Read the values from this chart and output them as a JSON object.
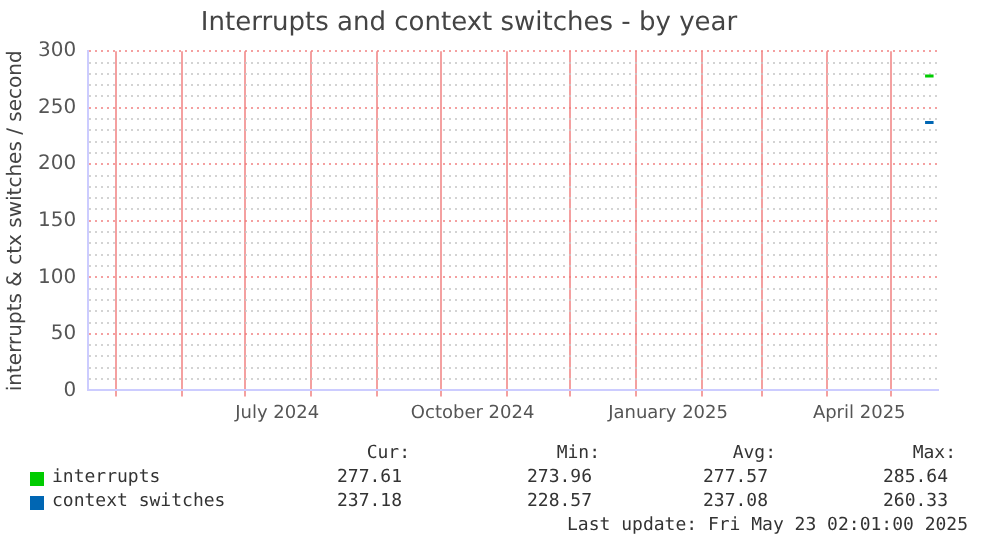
{
  "chart_data": {
    "type": "line",
    "title": "Interrupts and context switches - by year",
    "ylabel": "interrupts & ctx switches / second",
    "xlim": [
      "2024-04-18",
      "2025-05-23T02:01"
    ],
    "xticks": [
      {
        "value": "2024-05-01",
        "label": null
      },
      {
        "value": "2024-06-01",
        "label": null
      },
      {
        "value": "2024-07-01",
        "label": null
      },
      {
        "value": "2024-07-16",
        "label": "July 2024"
      },
      {
        "value": "2024-08-01",
        "label": null
      },
      {
        "value": "2024-09-01",
        "label": null
      },
      {
        "value": "2024-10-01",
        "label": null
      },
      {
        "value": "2024-10-16",
        "label": "October 2024"
      },
      {
        "value": "2024-11-01",
        "label": null
      },
      {
        "value": "2024-12-01",
        "label": null
      },
      {
        "value": "2025-01-01",
        "label": null
      },
      {
        "value": "2025-01-16",
        "label": "January 2025"
      },
      {
        "value": "2025-02-01",
        "label": null
      },
      {
        "value": "2025-03-01",
        "label": null
      },
      {
        "value": "2025-04-01",
        "label": null
      },
      {
        "value": "2025-04-16",
        "label": "April 2025"
      },
      {
        "value": "2025-05-01",
        "label": null
      }
    ],
    "ylim": [
      0,
      300
    ],
    "yticks": [
      0,
      {
        "value": 10,
        "label": null
      },
      {
        "value": 20,
        "label": null
      },
      {
        "value": 30,
        "label": null
      },
      {
        "value": 40,
        "label": null
      },
      50,
      {
        "value": 60,
        "label": null
      },
      {
        "value": 70,
        "label": null
      },
      {
        "value": 80,
        "label": null
      },
      {
        "value": 90,
        "label": null
      },
      100,
      {
        "value": 110,
        "label": null
      },
      {
        "value": 120,
        "label": null
      },
      {
        "value": 130,
        "label": null
      },
      {
        "value": 140,
        "label": null
      },
      150,
      {
        "value": 160,
        "label": null
      },
      {
        "value": 170,
        "label": null
      },
      {
        "value": 180,
        "label": null
      },
      {
        "value": 190,
        "label": null
      },
      200,
      {
        "value": 210,
        "label": null
      },
      {
        "value": 220,
        "label": null
      },
      {
        "value": 230,
        "label": null
      },
      {
        "value": 240,
        "label": null
      },
      250,
      {
        "value": 260,
        "label": null
      },
      {
        "value": 270,
        "label": null
      },
      {
        "value": 280,
        "label": null
      },
      {
        "value": 290,
        "label": null
      },
      300
    ],
    "grid": true,
    "legend": "bottom left",
    "marker": "none",
    "series": [
      {
        "name": "interrupts",
        "color": "#00cc00",
        "x": [
          "2025-05-17",
          "2025-05-21"
        ],
        "values": [
          278,
          278
        ]
      },
      {
        "name": "context switches",
        "color": "#0066b3",
        "x": [
          "2025-05-17",
          "2025-05-21"
        ],
        "values": [
          237,
          237
        ]
      }
    ],
    "annotations": [
      "Cur:",
      "Min:",
      "Avg:",
      "Max:",
      "277.61",
      "273.96",
      "277.57",
      "285.64",
      "237.18",
      "228.57",
      "237.08",
      "260.33",
      "Last update: Fri May 23 02:01:00 2025"
    ]
  }
}
